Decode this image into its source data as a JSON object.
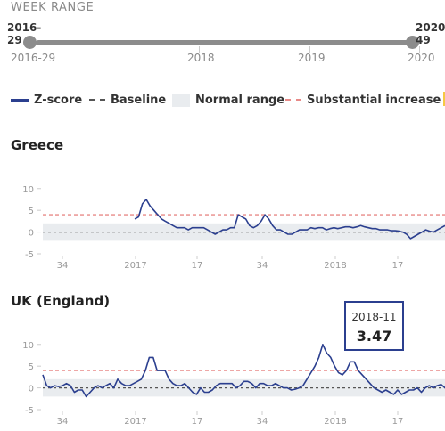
{
  "week_range": {
    "title": "WEEK RANGE",
    "start_value": "2016-29",
    "end_value": "2020-49",
    "axis_labels": [
      "2016-29",
      "2018",
      "2019",
      "2020"
    ]
  },
  "legend": {
    "zscore": "Z-score",
    "baseline": "Baseline",
    "normal_range": "Normal range",
    "substantial_increase": "Substantial increase"
  },
  "colors": {
    "zscore": "#2b3f8f",
    "baseline": "#555555",
    "normal_range": "#e9ecef",
    "substantial_increase": "#e88a88",
    "slider": "#8c8c8c"
  },
  "tooltip": {
    "date": "2018-11",
    "value": "3.47"
  },
  "chart_data": [
    {
      "type": "line",
      "title": "Greece",
      "ylim": [
        -5,
        12
      ],
      "yticks": [
        -5,
        0,
        5,
        10
      ],
      "xticks": [
        "34",
        "2017",
        "17",
        "34",
        "2018",
        "17"
      ],
      "normal_range": [
        -2,
        2
      ],
      "substantial_increase": 4,
      "baseline": 0,
      "series": [
        {
          "values": [
            null,
            null,
            null,
            null,
            null,
            null,
            null,
            null,
            null,
            null,
            null,
            null,
            null,
            null,
            null,
            null,
            null,
            null,
            null,
            null,
            null,
            null,
            null,
            null,
            3,
            3.5,
            6.5,
            7.5,
            6,
            5,
            4,
            3,
            2.5,
            2,
            1.5,
            1,
            1,
            1,
            0.5,
            1,
            1,
            1,
            1,
            0.5,
            0,
            -0.5,
            0,
            0.5,
            0.5,
            1,
            1,
            4,
            3.5,
            3,
            1.5,
            1,
            1.5,
            2.5,
            4,
            3,
            1.5,
            0.5,
            0.5,
            0,
            -0.5,
            -0.5,
            0,
            0.5,
            0.5,
            0.5,
            1,
            0.8,
            1,
            1,
            0.5,
            0.8,
            1,
            0.8,
            1,
            1.2,
            1.2,
            1,
            1.2,
            1.5,
            1.2,
            1,
            0.8,
            0.8,
            0.5,
            0.5,
            0.5,
            0.3,
            0.3,
            0.2,
            0,
            -0.5,
            -1.5,
            -1,
            -0.5,
            0,
            0.5,
            0.2,
            0,
            0.5,
            1,
            1.5
          ]
        }
      ]
    },
    {
      "type": "line",
      "title": "UK (England)",
      "ylim": [
        -5,
        12
      ],
      "yticks": [
        -5,
        0,
        5,
        10
      ],
      "xticks": [
        "34",
        "2017",
        "17",
        "34",
        "2018",
        "17"
      ],
      "normal_range": [
        -2,
        2
      ],
      "substantial_increase": 4,
      "baseline": 0,
      "series": [
        {
          "values": [
            3,
            0.5,
            0,
            0.5,
            0.3,
            0.5,
            1,
            0.5,
            -1,
            -0.5,
            -0.5,
            -2,
            -1,
            0,
            0.5,
            0,
            0.5,
            1,
            0,
            2,
            1,
            0.5,
            0.5,
            1,
            1.5,
            2,
            4,
            7,
            7,
            4,
            4,
            4,
            2,
            1,
            0.5,
            0.5,
            1,
            0,
            -1,
            -1.5,
            0,
            -1,
            -1,
            -0.5,
            0.5,
            1,
            1,
            1,
            1,
            0,
            0.5,
            1.5,
            1.5,
            1,
            0,
            1,
            1,
            0.5,
            0.5,
            1,
            0.5,
            0,
            0,
            -0.5,
            -0.3,
            0,
            0.5,
            2,
            3.5,
            5,
            7,
            10,
            8,
            7,
            5,
            3.47,
            3,
            4,
            6,
            6,
            4,
            3,
            2,
            1,
            0,
            -0.5,
            -1,
            -0.5,
            -1,
            -1.5,
            -0.5,
            -1.5,
            -1,
            -0.5,
            -0.5,
            0,
            -1,
            0,
            0.5,
            0,
            0.5,
            0.8,
            0
          ]
        }
      ]
    }
  ]
}
